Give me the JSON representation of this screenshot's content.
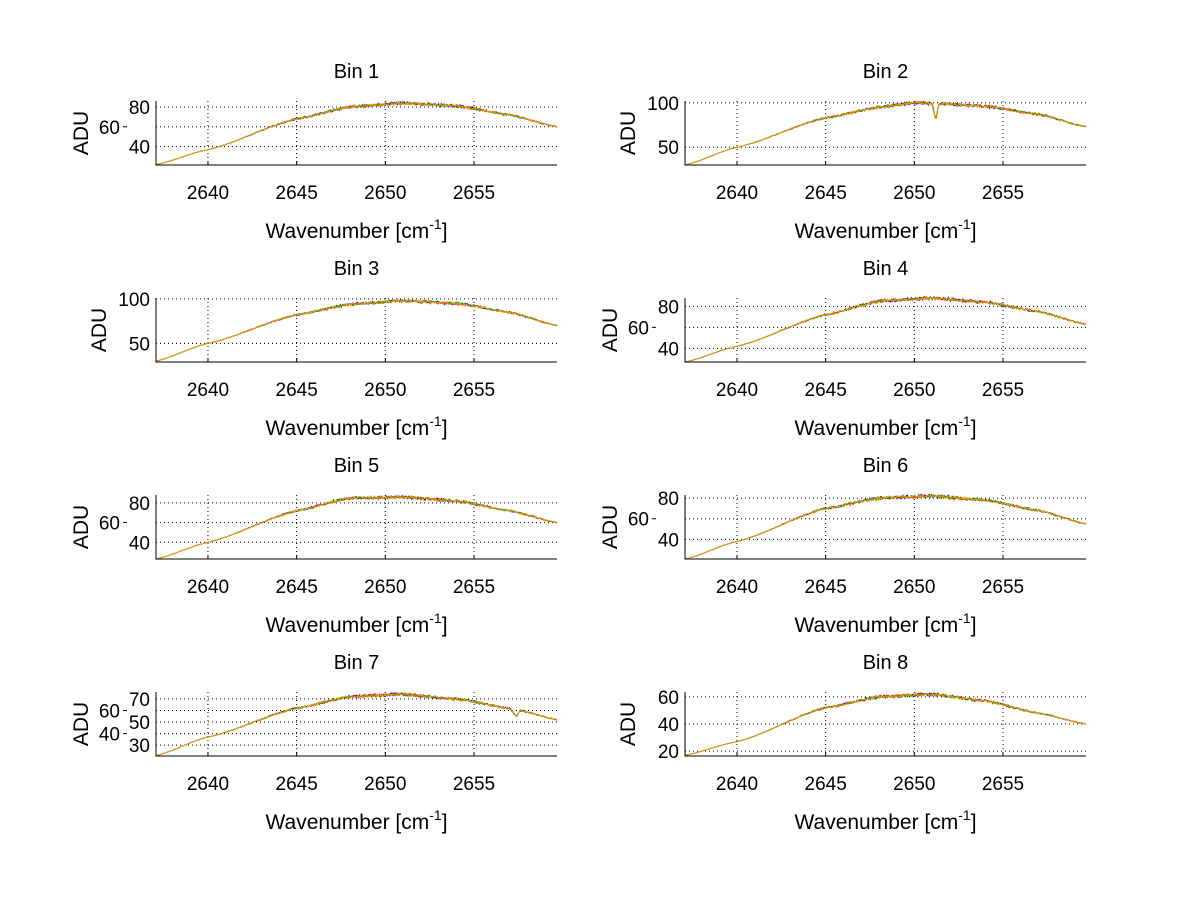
{
  "chart_data": [
    {
      "type": "line",
      "title": "Bin 1",
      "xlabel": "Wavenumber [cm",
      "xlabel_sup": "-1",
      "xlabel_end": "]",
      "ylabel": "ADU",
      "xlim": [
        2637.07,
        2659.68
      ],
      "ylim": [
        21.5,
        86
      ],
      "xticks": [
        2640,
        2645,
        2650,
        2655
      ],
      "yticks": [
        40,
        60,
        80
      ],
      "grid": true,
      "x": [
        2637.07,
        2640,
        2645,
        2648,
        2651,
        2654,
        2657,
        2659.68
      ],
      "y": [
        22,
        37,
        68,
        80,
        84,
        81,
        72,
        60
      ]
    },
    {
      "type": "line",
      "title": "Bin 2",
      "xlabel": "Wavenumber [cm",
      "xlabel_sup": "-1",
      "xlabel_end": "]",
      "ylabel": "ADU",
      "xlim": [
        2637.07,
        2659.68
      ],
      "ylim": [
        30,
        102
      ],
      "xticks": [
        2640,
        2645,
        2650,
        2655
      ],
      "yticks": [
        50,
        100
      ],
      "grid": true,
      "x": [
        2637.07,
        2640,
        2645,
        2648,
        2650,
        2651,
        2651.2,
        2651.4,
        2654,
        2657,
        2659.68
      ],
      "y": [
        30,
        50,
        83,
        95,
        100,
        99,
        82,
        99,
        96,
        87,
        73
      ]
    },
    {
      "type": "line",
      "title": "Bin 3",
      "xlabel": "Wavenumber [cm",
      "xlabel_sup": "-1",
      "xlabel_end": "]",
      "ylabel": "ADU",
      "xlim": [
        2637.07,
        2659.68
      ],
      "ylim": [
        29,
        101
      ],
      "xticks": [
        2640,
        2645,
        2650,
        2655
      ],
      "yticks": [
        50,
        100
      ],
      "grid": true,
      "x": [
        2637.07,
        2640,
        2645,
        2648,
        2651,
        2654,
        2657,
        2659.68
      ],
      "y": [
        30,
        50,
        82,
        94,
        98,
        95,
        85,
        70
      ]
    },
    {
      "type": "line",
      "title": "Bin 4",
      "xlabel": "Wavenumber [cm",
      "xlabel_sup": "-1",
      "xlabel_end": "]",
      "ylabel": "ADU",
      "xlim": [
        2637.07,
        2659.68
      ],
      "ylim": [
        27,
        88
      ],
      "xticks": [
        2640,
        2645,
        2650,
        2655
      ],
      "yticks": [
        40,
        60,
        80
      ],
      "grid": true,
      "x": [
        2637.07,
        2640,
        2645,
        2648,
        2651,
        2654,
        2657,
        2659.68
      ],
      "y": [
        27,
        42,
        72,
        85,
        88,
        84,
        75,
        63
      ]
    },
    {
      "type": "line",
      "title": "Bin 5",
      "xlabel": "Wavenumber [cm",
      "xlabel_sup": "-1",
      "xlabel_end": "]",
      "ylabel": "ADU",
      "xlim": [
        2637.07,
        2659.68
      ],
      "ylim": [
        23,
        88
      ],
      "xticks": [
        2640,
        2645,
        2650,
        2655
      ],
      "yticks": [
        40,
        60,
        80
      ],
      "grid": true,
      "x": [
        2637.07,
        2640,
        2645,
        2648,
        2651,
        2654,
        2657,
        2659.68
      ],
      "y": [
        23,
        40,
        72,
        85,
        86,
        82,
        72,
        60
      ]
    },
    {
      "type": "line",
      "title": "Bin 6",
      "xlabel": "Wavenumber [cm",
      "xlabel_sup": "-1",
      "xlabel_end": "]",
      "ylabel": "ADU",
      "xlim": [
        2637.07,
        2659.68
      ],
      "ylim": [
        21,
        83
      ],
      "xticks": [
        2640,
        2645,
        2650,
        2655
      ],
      "yticks": [
        40,
        60,
        80
      ],
      "grid": true,
      "x": [
        2637.07,
        2640,
        2645,
        2648,
        2651,
        2654,
        2657,
        2659.68
      ],
      "y": [
        21,
        38,
        70,
        80,
        82,
        78,
        68,
        55
      ]
    },
    {
      "type": "line",
      "title": "Bin 7",
      "xlabel": "Wavenumber [cm",
      "xlabel_sup": "-1",
      "xlabel_end": "]",
      "ylabel": "ADU",
      "xlim": [
        2637.07,
        2659.68
      ],
      "ylim": [
        20.6,
        76
      ],
      "xticks": [
        2640,
        2645,
        2650,
        2655
      ],
      "yticks": [
        30,
        40,
        50,
        60,
        70
      ],
      "grid": true,
      "x": [
        2637.07,
        2640,
        2645,
        2648,
        2651,
        2654,
        2657,
        2657.4,
        2657.6,
        2659.68
      ],
      "y": [
        21,
        37,
        62,
        72,
        74,
        70,
        62,
        55,
        60,
        52
      ]
    },
    {
      "type": "line",
      "title": "Bin 8",
      "xlabel": "Wavenumber [cm",
      "xlabel_sup": "-1",
      "xlabel_end": "]",
      "ylabel": "ADU",
      "xlim": [
        2637.07,
        2659.68
      ],
      "ylim": [
        16.4,
        63.6
      ],
      "xticks": [
        2640,
        2645,
        2650,
        2655
      ],
      "yticks": [
        20,
        40,
        60
      ],
      "grid": true,
      "x": [
        2637.07,
        2640,
        2645,
        2648,
        2651,
        2654,
        2657,
        2659.68
      ],
      "y": [
        17,
        27,
        52,
        60,
        62,
        57,
        48,
        40
      ]
    }
  ],
  "series_colors": [
    "#0000ff",
    "#ff0000",
    "#00aa00",
    "#ff9900"
  ]
}
